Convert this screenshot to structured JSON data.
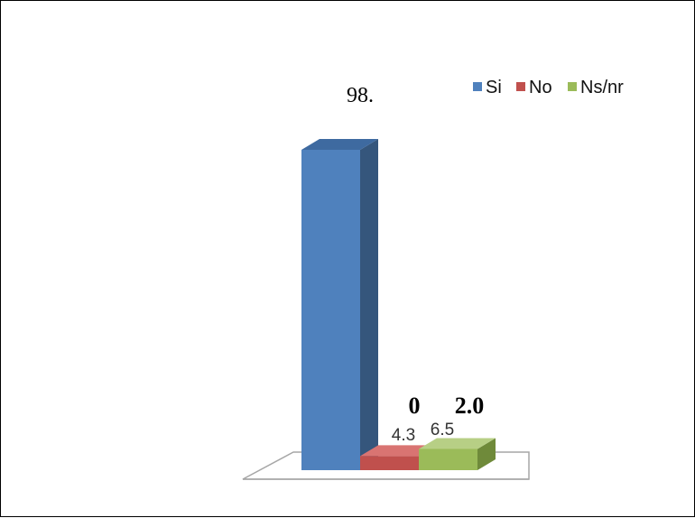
{
  "chart_data": {
    "type": "bar",
    "categories": [
      "Si",
      "No",
      "Ns/nr"
    ],
    "values": [
      98.0,
      4.3,
      6.5
    ],
    "series": [
      {
        "name": "Si",
        "value": 98.0,
        "label": "98.",
        "color": "#4f81bd",
        "side": "#35567c",
        "top": "#3e6aa0"
      },
      {
        "name": "No",
        "value": 4.3,
        "label": "4.3",
        "color": "#c0504d",
        "side": "#8c3835",
        "top": "#d97472"
      },
      {
        "name": "Ns/nr",
        "value": 6.5,
        "label": "6.5",
        "color": "#9bbb59",
        "side": "#6f8a3a",
        "top": "#b7cf85"
      }
    ],
    "extra_labels": [
      "0",
      "2.0"
    ],
    "ylim": [
      0,
      100
    ],
    "legend": {
      "placement": "top-right",
      "entries": [
        "Si",
        "No",
        "Ns/nr"
      ]
    },
    "grid": false,
    "style": "3d-column"
  }
}
